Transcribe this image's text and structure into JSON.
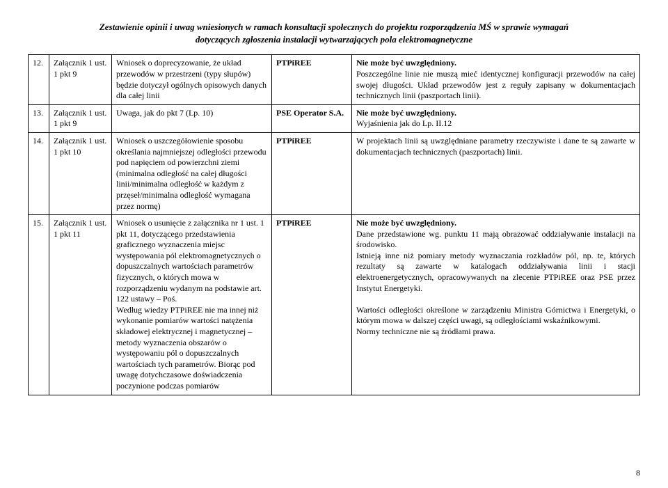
{
  "header_line1": "Zestawienie opinii  i uwag wniesionych w ramach konsultacji społecznych do projektu rozporządzenia MŚ w sprawie wymagań",
  "header_line2": "dotyczących zgłoszenia instalacji wytwarzających pola elektromagnetyczne",
  "rows": [
    {
      "num": "12.",
      "ref": "Załącznik 1 ust. 1 pkt 9",
      "comment": "Wniosek o doprecyzowanie, że układ przewodów w przestrzeni (typy słupów) będzie dotyczył ogólnych opisowych danych dla całej linii",
      "author": "PTPiREE",
      "resp_bold": "Nie może być uwzględniony.",
      "resp": "Poszczególne linie nie muszą mieć identycznej konfiguracji przewodów na całej swojej długości. Układ przewodów jest z reguły zapisany w dokumentacjach technicznych linii (paszportach linii)."
    },
    {
      "num": "13.",
      "ref": "Załącznik 1 ust. 1 pkt 9",
      "comment": "Uwaga, jak do pkt 7 (Lp. 10)",
      "author": "PSE Operator S.A.",
      "resp_bold": "Nie może być uwzględniony.",
      "resp": "Wyjaśnienia jak do Lp. II.12"
    },
    {
      "num": "14.",
      "ref": "Załącznik 1 ust. 1 pkt 10",
      "comment": "Wniosek o uszczegółowienie sposobu określania najmniejszej odległości przewodu pod napięciem od powierzchni ziemi (minimalna odległość na całej długości linii/minimalna odległość w każdym z przęseł/minimalna odległość wymagana przez normę)",
      "author": "PTPiREE",
      "resp_bold": "",
      "resp": "W projektach linii są uwzględniane parametry rzeczywiste i dane te są zawarte w dokumentacjach technicznych (paszportach) linii."
    },
    {
      "num": "15.",
      "ref": "Załącznik 1 ust. 1 pkt 11",
      "comment": "Wniosek o usunięcie z załącznika nr 1 ust. 1 pkt 11, dotyczącego przedstawienia graficznego wyznaczenia miejsc występowania pól elektromagnetycznych o dopuszczalnych wartościach parametrów fizycznych, o których mowa w rozporządzeniu wydanym na podstawie art. 122 ustawy – Poś.\nWedług wiedzy PTPiREE nie ma innej niż wykonanie pomiarów wartości natężenia składowej elektrycznej i magnetycznej – metody wyznaczenia obszarów o występowaniu pól o dopuszczalnych wartościach tych parametrów. Biorąc pod uwagę dotychczasowe doświadczenia poczynione podczas pomiarów",
      "author": "PTPiREE",
      "resp_bold": "Nie może być uwzględniony.",
      "resp": "\nDane przedstawione wg.  punktu 11 mają obrazować oddziaływanie instalacji na środowisko.\nIstnieją inne niż pomiary metody wyznaczania rozkładów pól, np. te, których rezultaty są zawarte w katalogach oddziaływania linii i stacji elektroenergetycznych, opracowywanych na zlecenie PTPiREE oraz PSE przez Instytut Energetyki.\n\nWartości odległości określone w zarządzeniu Ministra Górnictwa i Energetyki, o którym mowa w dalszej części uwagi, są odległościami wskaźnikowymi.\nNormy techniczne nie są źródłami prawa."
    }
  ],
  "page_number": "8"
}
